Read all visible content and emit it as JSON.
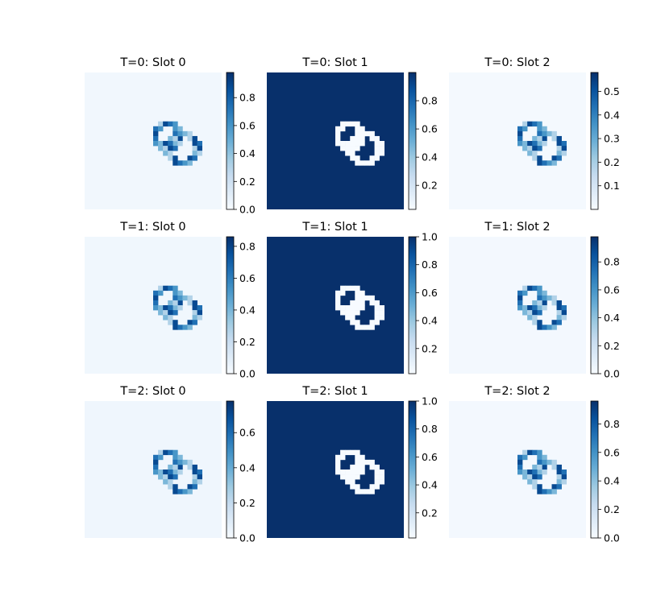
{
  "chart_data": [
    {
      "type": "heatmap",
      "title": "T=0: Slot 0",
      "colormap": "Blues",
      "colorbar_range": [
        0,
        0.98
      ],
      "colorbar_ticks": [
        "0.0",
        "0.2",
        "0.4",
        "0.6",
        "0.8"
      ],
      "background_value": 0.03
    },
    {
      "type": "heatmap",
      "title": "T=0: Slot 1",
      "colormap": "Blues",
      "colorbar_range": [
        0.03,
        1.0
      ],
      "colorbar_ticks": [
        "0.2",
        "0.4",
        "0.6",
        "0.8"
      ],
      "background_value": 1.0
    },
    {
      "type": "heatmap",
      "title": "T=0: Slot 2",
      "colormap": "Blues",
      "colorbar_range": [
        0.0,
        0.58
      ],
      "colorbar_ticks": [
        "0.1",
        "0.2",
        "0.3",
        "0.4",
        "0.5"
      ],
      "background_value": 0.01
    },
    {
      "type": "heatmap",
      "title": "T=1: Slot 0",
      "colormap": "Blues",
      "colorbar_range": [
        0,
        0.86
      ],
      "colorbar_ticks": [
        "0.0",
        "0.2",
        "0.4",
        "0.6",
        "0.8"
      ],
      "background_value": 0.03
    },
    {
      "type": "heatmap",
      "title": "T=1: Slot 1",
      "colormap": "Blues",
      "colorbar_range": [
        0.02,
        1.0
      ],
      "colorbar_ticks": [
        "0.2",
        "0.4",
        "0.6",
        "0.8",
        "1.0"
      ],
      "background_value": 1.0
    },
    {
      "type": "heatmap",
      "title": "T=1: Slot 2",
      "colormap": "Blues",
      "colorbar_range": [
        0,
        0.98
      ],
      "colorbar_ticks": [
        "0.0",
        "0.2",
        "0.4",
        "0.6",
        "0.8"
      ],
      "background_value": 0.02
    },
    {
      "type": "heatmap",
      "title": "T=2: Slot 0",
      "colormap": "Blues",
      "colorbar_range": [
        0,
        0.78
      ],
      "colorbar_ticks": [
        "0.0",
        "0.2",
        "0.4",
        "0.6"
      ],
      "background_value": 0.03
    },
    {
      "type": "heatmap",
      "title": "T=2: Slot 1",
      "colormap": "Blues",
      "colorbar_range": [
        0.02,
        1.0
      ],
      "colorbar_ticks": [
        "0.2",
        "0.4",
        "0.6",
        "0.8",
        "1.0"
      ],
      "background_value": 1.0
    },
    {
      "type": "heatmap",
      "title": "T=2: Slot 2",
      "colormap": "Blues",
      "colorbar_range": [
        0,
        0.96
      ],
      "colorbar_ticks": [
        "0.0",
        "0.2",
        "0.4",
        "0.6",
        "0.8"
      ],
      "background_value": 0.02
    }
  ]
}
